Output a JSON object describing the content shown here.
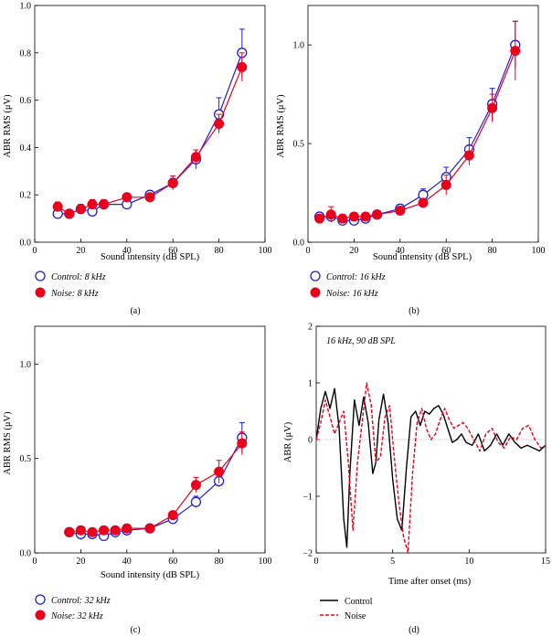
{
  "colors": {
    "control": "#1f1fd6",
    "noise": "#e8001c",
    "axis": "#000000",
    "zero_line": "#9a9a9a"
  },
  "chart_data": [
    {
      "panel": "a",
      "type": "scatter",
      "panel_label": "(a)",
      "xlabel": "Sound intensity (dB SPL)",
      "ylabel": "ABR RMS (μV)",
      "xlim": [
        0,
        100
      ],
      "ylim": [
        0,
        1.0
      ],
      "xticks": [
        0,
        20,
        40,
        60,
        80,
        100
      ],
      "yticks": [
        0,
        0.2,
        0.4,
        0.6,
        0.8,
        1.0
      ],
      "ytick_labels": [
        "0.0",
        "0.2",
        "0.4",
        "0.6",
        "0.8",
        "1.0"
      ],
      "legend_position": "below",
      "series": [
        {
          "name": "Control: 8 kHz",
          "marker": "open-circle",
          "color": "control",
          "x": [
            10,
            15,
            20,
            25,
            30,
            40,
            50,
            60,
            70,
            80,
            90
          ],
          "y": [
            0.12,
            0.12,
            0.14,
            0.13,
            0.16,
            0.16,
            0.2,
            0.25,
            0.35,
            0.54,
            0.8
          ],
          "err": [
            0.01,
            0.01,
            0.02,
            0.01,
            0.01,
            0.01,
            0.01,
            0.02,
            0.04,
            0.07,
            0.1
          ]
        },
        {
          "name": "Noise: 8 kHz",
          "marker": "filled-circle",
          "color": "noise",
          "x": [
            10,
            15,
            20,
            25,
            30,
            40,
            50,
            60,
            70,
            80,
            90
          ],
          "y": [
            0.15,
            0.12,
            0.14,
            0.16,
            0.16,
            0.19,
            0.19,
            0.25,
            0.36,
            0.5,
            0.74
          ],
          "err": [
            0.02,
            0.01,
            0.01,
            0.02,
            0.02,
            0.01,
            0.01,
            0.03,
            0.03,
            0.04,
            0.06
          ]
        }
      ]
    },
    {
      "panel": "b",
      "type": "scatter",
      "panel_label": "(b)",
      "xlabel": "Sound intensity (dB SPL)",
      "ylabel": "ABR RMS (μV)",
      "xlim": [
        0,
        100
      ],
      "ylim": [
        0,
        1.2
      ],
      "xticks": [
        0,
        20,
        40,
        60,
        80,
        100
      ],
      "yticks": [
        0,
        0.5,
        1.0
      ],
      "ytick_labels": [
        "0.0",
        "0.5",
        "1.0"
      ],
      "legend_position": "below",
      "series": [
        {
          "name": "Control: 16 kHz",
          "marker": "open-circle",
          "color": "control",
          "x": [
            5,
            10,
            15,
            20,
            25,
            30,
            40,
            50,
            60,
            70,
            80,
            90
          ],
          "y": [
            0.13,
            0.13,
            0.11,
            0.11,
            0.12,
            0.14,
            0.17,
            0.24,
            0.33,
            0.47,
            0.7,
            1.0
          ],
          "err": [
            0.02,
            0.02,
            0.02,
            0.01,
            0.01,
            0.01,
            0.02,
            0.03,
            0.05,
            0.06,
            0.08,
            0.12
          ]
        },
        {
          "name": "Noise: 16 kHz",
          "marker": "filled-circle",
          "color": "noise",
          "x": [
            5,
            10,
            15,
            20,
            25,
            30,
            40,
            50,
            60,
            70,
            80,
            90
          ],
          "y": [
            0.12,
            0.14,
            0.12,
            0.13,
            0.13,
            0.14,
            0.16,
            0.2,
            0.29,
            0.44,
            0.68,
            0.97
          ],
          "err": [
            0.02,
            0.04,
            0.02,
            0.01,
            0.01,
            0.01,
            0.02,
            0.02,
            0.05,
            0.05,
            0.07,
            0.15
          ]
        }
      ]
    },
    {
      "panel": "c",
      "type": "scatter",
      "panel_label": "(c)",
      "xlabel": "Sound intensity (dB SPL)",
      "ylabel": "ABR RMS (μV)",
      "xlim": [
        0,
        100
      ],
      "ylim": [
        0,
        1.2
      ],
      "xticks": [
        0,
        20,
        40,
        60,
        80,
        100
      ],
      "yticks": [
        0,
        0.5,
        1.0
      ],
      "ytick_labels": [
        "0.0",
        "0.5",
        "1.0"
      ],
      "legend_position": "below",
      "series": [
        {
          "name": "Control: 32 kHz",
          "marker": "open-circle",
          "color": "control",
          "x": [
            15,
            20,
            25,
            30,
            35,
            40,
            50,
            60,
            70,
            80,
            90
          ],
          "y": [
            0.11,
            0.1,
            0.1,
            0.09,
            0.11,
            0.12,
            0.13,
            0.18,
            0.27,
            0.38,
            0.61
          ],
          "err": [
            0.02,
            0.03,
            0.02,
            0.02,
            0.03,
            0.03,
            0.02,
            0.02,
            0.03,
            0.03,
            0.08
          ]
        },
        {
          "name": "Noise: 32 kHz",
          "marker": "filled-circle",
          "color": "noise",
          "x": [
            15,
            20,
            25,
            30,
            35,
            40,
            50,
            60,
            70,
            80,
            90
          ],
          "y": [
            0.11,
            0.12,
            0.11,
            0.12,
            0.12,
            0.13,
            0.13,
            0.2,
            0.36,
            0.43,
            0.58
          ],
          "err": [
            0.02,
            0.02,
            0.02,
            0.02,
            0.02,
            0.02,
            0.02,
            0.02,
            0.04,
            0.06,
            0.06
          ]
        }
      ]
    },
    {
      "panel": "d",
      "type": "line",
      "panel_label": "(d)",
      "annotation": "16 kHz, 90 dB SPL",
      "xlabel": "Time after onset (ms)",
      "ylabel": "ABR (μV)",
      "xlim": [
        0,
        15
      ],
      "ylim": [
        -2,
        2
      ],
      "xticks": [
        0,
        5,
        10,
        15
      ],
      "yticks": [
        -2,
        -1,
        0,
        1,
        2
      ],
      "ytick_labels": [
        "−2",
        "−1",
        "0",
        "1",
        "2"
      ],
      "legend_position": "below",
      "series": [
        {
          "name": "Control",
          "style": "solid",
          "color": "axis",
          "x": [
            0,
            0.3,
            0.6,
            0.9,
            1.2,
            1.5,
            1.8,
            2.0,
            2.2,
            2.5,
            2.8,
            3.1,
            3.4,
            3.7,
            3.9,
            4.1,
            4.4,
            4.7,
            5.0,
            5.3,
            5.6,
            5.9,
            6.2,
            6.5,
            6.8,
            7.1,
            7.4,
            7.7,
            8.0,
            8.3,
            8.6,
            8.9,
            9.2,
            9.5,
            9.8,
            10.2,
            10.6,
            11.0,
            11.4,
            11.8,
            12.2,
            12.6,
            13.0,
            13.4,
            13.8,
            14.2,
            14.6,
            15.0
          ],
          "y": [
            0.0,
            0.55,
            0.85,
            0.55,
            0.9,
            0.2,
            -1.4,
            -1.9,
            -0.6,
            0.7,
            0.25,
            0.75,
            0.3,
            -0.6,
            -0.4,
            0.35,
            0.8,
            0.3,
            -0.7,
            -1.4,
            -1.6,
            -0.5,
            0.4,
            0.5,
            0.25,
            0.5,
            0.45,
            0.55,
            0.6,
            0.45,
            0.2,
            -0.05,
            0.0,
            0.1,
            -0.05,
            -0.1,
            0.1,
            -0.2,
            -0.1,
            0.1,
            -0.1,
            0.1,
            -0.05,
            -0.15,
            -0.1,
            -0.15,
            -0.2,
            -0.1
          ]
        },
        {
          "name": "Noise",
          "style": "dashed",
          "color": "noise",
          "x": [
            0,
            0.3,
            0.6,
            0.9,
            1.2,
            1.5,
            1.8,
            2.1,
            2.4,
            2.7,
            3.0,
            3.3,
            3.6,
            3.9,
            4.2,
            4.5,
            4.8,
            5.1,
            5.4,
            5.7,
            6.0,
            6.3,
            6.6,
            6.9,
            7.2,
            7.5,
            7.8,
            8.1,
            8.4,
            8.7,
            9.0,
            9.3,
            9.6,
            9.9,
            10.3,
            10.7,
            11.1,
            11.5,
            11.9,
            12.3,
            12.7,
            13.1,
            13.5,
            13.9,
            14.3,
            14.7,
            15.0
          ],
          "y": [
            0.0,
            0.3,
            0.7,
            0.4,
            0.1,
            0.3,
            0.5,
            -0.4,
            -1.6,
            -0.4,
            0.3,
            1.0,
            0.6,
            -0.4,
            -0.3,
            0.4,
            0.6,
            -0.3,
            -1.1,
            -1.7,
            -2.0,
            -0.6,
            0.3,
            0.55,
            0.2,
            0.0,
            0.1,
            0.35,
            0.55,
            0.35,
            0.2,
            0.25,
            0.3,
            0.2,
            0.0,
            -0.2,
            0.1,
            0.2,
            -0.05,
            -0.15,
            0.05,
            0.0,
            0.2,
            0.25,
            0.0,
            -0.15,
            -0.1
          ]
        }
      ]
    }
  ]
}
